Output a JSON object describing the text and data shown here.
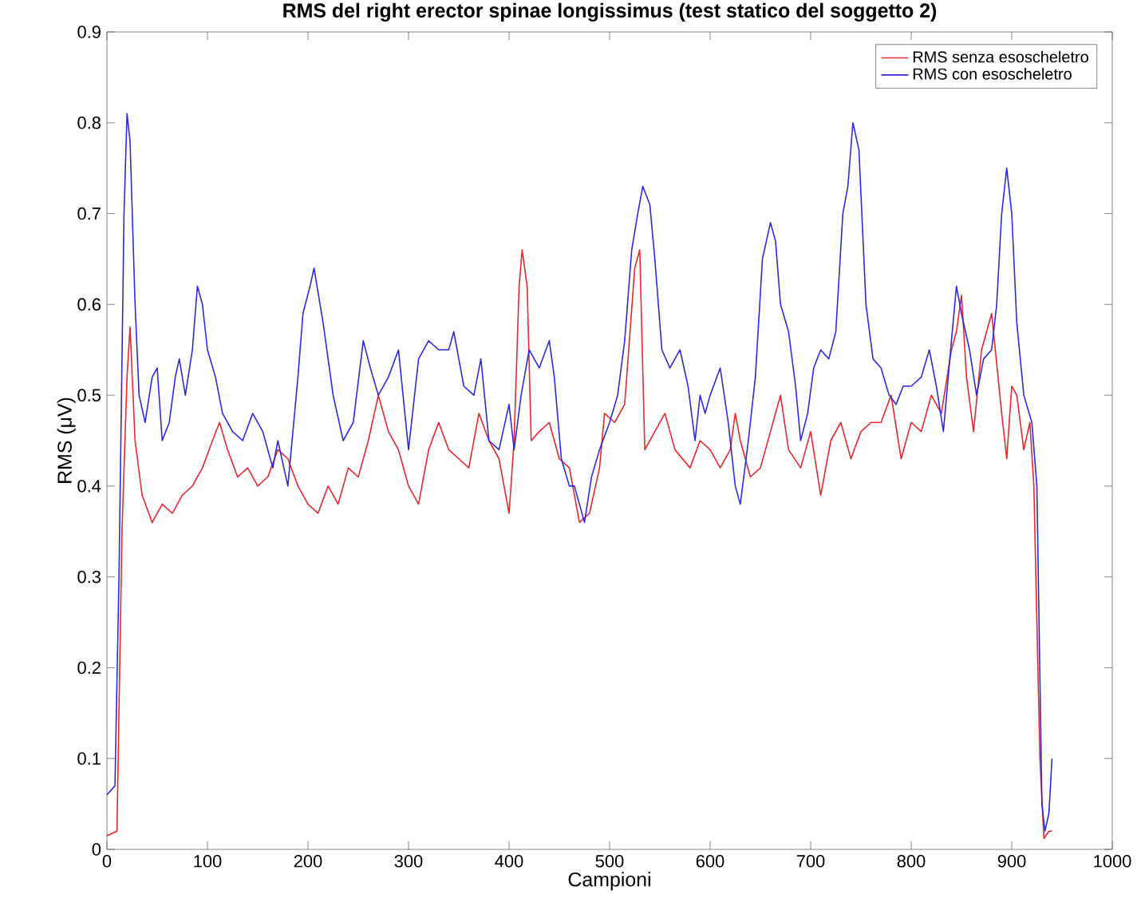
{
  "chart_data": {
    "type": "line",
    "title": "RMS del right erector spinae longissimus (test statico del soggetto 2)",
    "xlabel": "Campioni",
    "ylabel": "RMS (μV)",
    "xlim": [
      0,
      1000
    ],
    "ylim": [
      0,
      0.9
    ],
    "xticks": [
      0,
      100,
      200,
      300,
      400,
      500,
      600,
      700,
      800,
      900,
      1000
    ],
    "yticks": [
      0,
      0.1,
      0.2,
      0.3,
      0.4,
      0.5,
      0.6,
      0.7,
      0.8,
      0.9
    ],
    "legend": "top right",
    "grid": false,
    "line_style": "solid",
    "marker": "none",
    "series": [
      {
        "name": "RMS senza esoscheletro",
        "color": "#e8262c",
        "x": [
          0,
          10,
          15,
          20,
          23,
          28,
          35,
          45,
          55,
          65,
          75,
          85,
          95,
          105,
          112,
          120,
          130,
          140,
          150,
          160,
          170,
          180,
          190,
          200,
          210,
          220,
          230,
          240,
          250,
          260,
          270,
          280,
          290,
          300,
          310,
          320,
          330,
          340,
          350,
          360,
          370,
          380,
          390,
          400,
          405,
          410,
          413,
          418,
          422,
          430,
          440,
          450,
          460,
          470,
          480,
          490,
          495,
          505,
          515,
          525,
          530,
          535,
          545,
          555,
          565,
          580,
          590,
          600,
          610,
          620,
          625,
          630,
          640,
          650,
          660,
          670,
          678,
          690,
          700,
          710,
          720,
          730,
          740,
          750,
          760,
          770,
          780,
          790,
          800,
          810,
          820,
          830,
          840,
          845,
          850,
          855,
          862,
          870,
          880,
          890,
          895,
          900,
          905,
          912,
          918,
          922,
          928,
          932,
          937,
          940
        ],
        "values": [
          0.015,
          0.02,
          0.35,
          0.52,
          0.575,
          0.45,
          0.39,
          0.36,
          0.38,
          0.37,
          0.39,
          0.4,
          0.42,
          0.45,
          0.47,
          0.44,
          0.41,
          0.42,
          0.4,
          0.41,
          0.44,
          0.43,
          0.4,
          0.38,
          0.37,
          0.4,
          0.38,
          0.42,
          0.41,
          0.45,
          0.5,
          0.46,
          0.44,
          0.4,
          0.38,
          0.44,
          0.47,
          0.44,
          0.43,
          0.42,
          0.48,
          0.45,
          0.43,
          0.37,
          0.45,
          0.62,
          0.66,
          0.62,
          0.45,
          0.46,
          0.47,
          0.43,
          0.42,
          0.36,
          0.37,
          0.42,
          0.48,
          0.47,
          0.49,
          0.64,
          0.66,
          0.44,
          0.46,
          0.48,
          0.44,
          0.42,
          0.45,
          0.44,
          0.42,
          0.44,
          0.48,
          0.45,
          0.41,
          0.42,
          0.46,
          0.5,
          0.44,
          0.42,
          0.46,
          0.39,
          0.45,
          0.47,
          0.43,
          0.46,
          0.47,
          0.47,
          0.5,
          0.43,
          0.47,
          0.46,
          0.5,
          0.48,
          0.55,
          0.57,
          0.61,
          0.52,
          0.46,
          0.55,
          0.59,
          0.48,
          0.43,
          0.51,
          0.5,
          0.44,
          0.47,
          0.4,
          0.1,
          0.012,
          0.02,
          0.02
        ]
      },
      {
        "name": "RMS con esoscheletro",
        "color": "#2a2ae0",
        "x": [
          0,
          8,
          12,
          17,
          20,
          23,
          28,
          32,
          38,
          45,
          50,
          55,
          62,
          68,
          72,
          78,
          85,
          90,
          95,
          100,
          108,
          115,
          125,
          135,
          145,
          155,
          165,
          170,
          180,
          190,
          195,
          202,
          206,
          215,
          225,
          235,
          245,
          255,
          262,
          270,
          280,
          290,
          300,
          310,
          320,
          330,
          340,
          345,
          355,
          365,
          372,
          380,
          390,
          400,
          405,
          412,
          420,
          430,
          440,
          445,
          452,
          460,
          465,
          470,
          475,
          482,
          490,
          500,
          508,
          515,
          522,
          528,
          533,
          540,
          545,
          552,
          560,
          570,
          578,
          585,
          590,
          595,
          600,
          610,
          618,
          625,
          630,
          638,
          645,
          652,
          660,
          665,
          670,
          678,
          685,
          690,
          697,
          703,
          710,
          718,
          725,
          732,
          737,
          742,
          748,
          755,
          762,
          770,
          778,
          785,
          792,
          800,
          810,
          818,
          825,
          832,
          840,
          845,
          850,
          858,
          865,
          872,
          880,
          885,
          890,
          895,
          900,
          905,
          912,
          920,
          925,
          930,
          933,
          937,
          940
        ],
        "values": [
          0.06,
          0.07,
          0.3,
          0.7,
          0.81,
          0.78,
          0.6,
          0.5,
          0.47,
          0.52,
          0.53,
          0.45,
          0.47,
          0.52,
          0.54,
          0.5,
          0.55,
          0.62,
          0.6,
          0.55,
          0.52,
          0.48,
          0.46,
          0.45,
          0.48,
          0.46,
          0.42,
          0.45,
          0.4,
          0.52,
          0.59,
          0.62,
          0.64,
          0.58,
          0.5,
          0.45,
          0.47,
          0.56,
          0.53,
          0.5,
          0.52,
          0.55,
          0.44,
          0.54,
          0.56,
          0.55,
          0.55,
          0.57,
          0.51,
          0.5,
          0.54,
          0.45,
          0.44,
          0.49,
          0.44,
          0.5,
          0.55,
          0.53,
          0.56,
          0.52,
          0.43,
          0.4,
          0.4,
          0.38,
          0.36,
          0.41,
          0.44,
          0.47,
          0.5,
          0.56,
          0.66,
          0.7,
          0.73,
          0.71,
          0.65,
          0.55,
          0.53,
          0.55,
          0.51,
          0.45,
          0.5,
          0.48,
          0.5,
          0.53,
          0.47,
          0.4,
          0.38,
          0.45,
          0.52,
          0.65,
          0.69,
          0.67,
          0.6,
          0.57,
          0.51,
          0.45,
          0.48,
          0.53,
          0.55,
          0.54,
          0.57,
          0.7,
          0.73,
          0.8,
          0.77,
          0.6,
          0.54,
          0.53,
          0.5,
          0.49,
          0.51,
          0.51,
          0.52,
          0.55,
          0.51,
          0.46,
          0.56,
          0.62,
          0.59,
          0.55,
          0.5,
          0.54,
          0.55,
          0.6,
          0.7,
          0.75,
          0.7,
          0.58,
          0.5,
          0.47,
          0.4,
          0.05,
          0.02,
          0.04,
          0.1
        ]
      }
    ]
  }
}
